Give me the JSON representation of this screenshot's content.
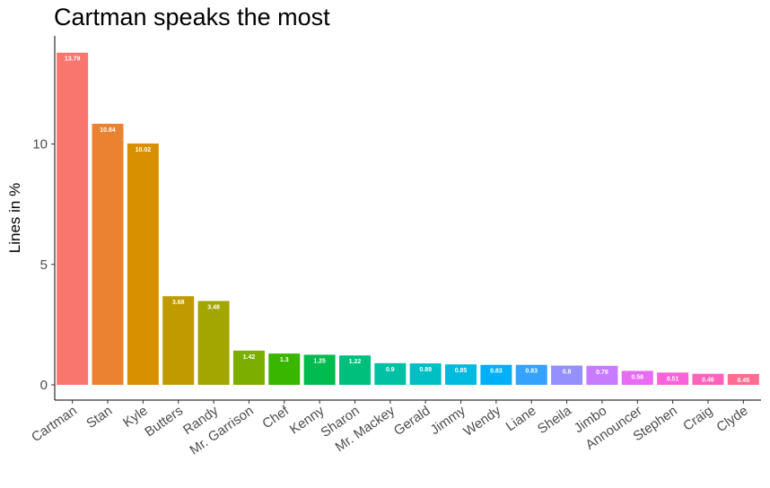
{
  "chart_data": {
    "type": "bar",
    "title": "Cartman speaks the most",
    "xlabel": "",
    "ylabel": "Lines in %",
    "ylim": [
      0,
      14.0
    ],
    "yticks": [
      0,
      5,
      10
    ],
    "grid": false,
    "legend": "none",
    "categories": [
      "Cartman",
      "Stan",
      "Kyle",
      "Butters",
      "Randy",
      "Mr. Garrison",
      "Chef",
      "Kenny",
      "Sharon",
      "Mr. Mackey",
      "Gerald",
      "Jimmy",
      "Wendy",
      "Liane",
      "Sheila",
      "Jimbo",
      "Announcer",
      "Stephen",
      "Craig",
      "Clyde"
    ],
    "values": [
      13.79,
      10.84,
      10.02,
      3.68,
      3.48,
      1.42,
      1.3,
      1.25,
      1.22,
      0.9,
      0.89,
      0.85,
      0.83,
      0.83,
      0.8,
      0.79,
      0.58,
      0.51,
      0.46,
      0.45
    ],
    "value_labels": [
      "13.79",
      "10.84",
      "10.02",
      "3.68",
      "3.48",
      "1.42",
      "1.3",
      "1.25",
      "1.22",
      "0.9",
      "0.89",
      "0.85",
      "0.83",
      "0.83",
      "0.8",
      "0.79",
      "0.58",
      "0.51",
      "0.46",
      "0.45"
    ],
    "colors": [
      "#F8766D",
      "#EA8331",
      "#D89000",
      "#C09B00",
      "#A3A500",
      "#7CAE00",
      "#39B600",
      "#00BB4E",
      "#00BF7D",
      "#00C1A3",
      "#00BFC4",
      "#00BAE0",
      "#00B0F6",
      "#35A2FF",
      "#9590FF",
      "#C77CFF",
      "#E76BF3",
      "#FA62DB",
      "#FF62BC",
      "#FF6C91"
    ]
  }
}
